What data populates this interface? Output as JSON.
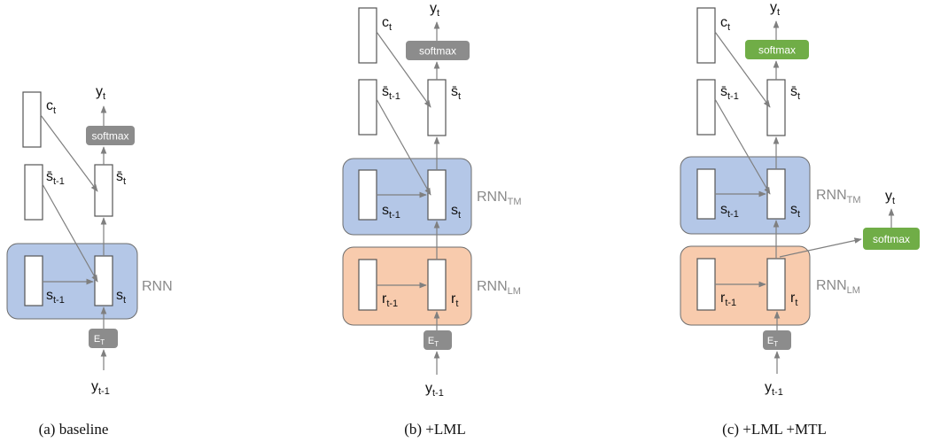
{
  "colors": {
    "blue_block": "#b4c7e7",
    "orange_block": "#f8cbad",
    "grey_box": "#8c8c8c",
    "green_box": "#70ad47",
    "arrow": "#7f7f7f",
    "label_grey": "#8a8a8a"
  },
  "panels": {
    "a": {
      "caption": "(a) baseline",
      "y_top": "y",
      "y_top_sub": "t",
      "c": "c",
      "c_sub": "t",
      "sbar_prev": "s̄",
      "sbar_prev_sub": "t-1",
      "sbar": "s̄",
      "sbar_sub": "t",
      "s_prev": "s",
      "s_prev_sub": "t-1",
      "s": "s",
      "s_sub": "t",
      "softmax": "softmax",
      "block": "RNN",
      "embed": "E",
      "embed_sub": "T",
      "y_in": "y",
      "y_in_sub": "t-1"
    },
    "b": {
      "caption": "(b) +LML",
      "y_top": "y",
      "y_top_sub": "t",
      "c": "c",
      "c_sub": "t",
      "sbar_prev": "s̄",
      "sbar_prev_sub": "t-1",
      "sbar": "s̄",
      "sbar_sub": "t",
      "softmax": "softmax",
      "tm_s_prev": "s",
      "tm_s_prev_sub": "t-1",
      "tm_s": "s",
      "tm_s_sub": "t",
      "tm_block": "RNN",
      "tm_block_sub": "TM",
      "lm_r_prev": "r",
      "lm_r_prev_sub": "t-1",
      "lm_r": "r",
      "lm_r_sub": "t",
      "lm_block": "RNN",
      "lm_block_sub": "LM",
      "embed": "E",
      "embed_sub": "T",
      "y_in": "y",
      "y_in_sub": "t-1"
    },
    "c": {
      "caption": "(c) +LML +MTL",
      "y_top": "y",
      "y_top_sub": "t",
      "c": "c",
      "c_sub": "t",
      "sbar_prev": "s̄",
      "sbar_prev_sub": "t-1",
      "sbar": "s̄",
      "sbar_sub": "t",
      "softmax": "softmax",
      "tm_s_prev": "s",
      "tm_s_prev_sub": "t-1",
      "tm_s": "s",
      "tm_s_sub": "t",
      "tm_block": "RNN",
      "tm_block_sub": "TM",
      "lm_r_prev": "r",
      "lm_r_prev_sub": "t-1",
      "lm_r": "r",
      "lm_r_sub": "t",
      "lm_block": "RNN",
      "lm_block_sub": "LM",
      "side_y": "y",
      "side_y_sub": "t",
      "side_softmax": "softmax",
      "embed": "E",
      "embed_sub": "T",
      "y_in": "y",
      "y_in_sub": "t-1"
    }
  }
}
